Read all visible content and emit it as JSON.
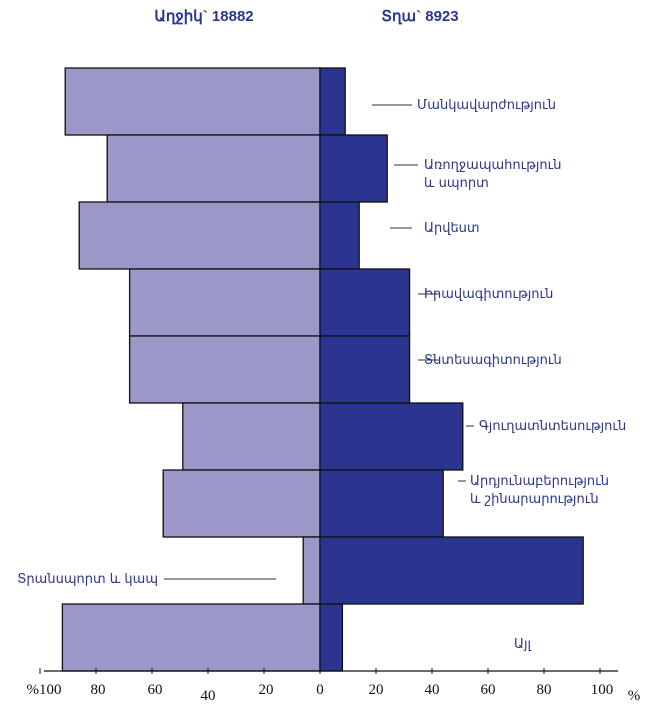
{
  "chart_data": {
    "type": "bar",
    "subtype": "diverging-horizontal",
    "title_left": "Աղջիկ` 18882",
    "title_right": "Տղա` 8923",
    "categories": [
      {
        "lines": [
          "Մանկավարժություն"
        ]
      },
      {
        "lines": [
          "Առողջապահություն",
          "և սպորտ"
        ]
      },
      {
        "lines": [
          "Արվեստ"
        ]
      },
      {
        "lines": [
          "Իրավագիտություն"
        ]
      },
      {
        "lines": [
          "Տնտեսագիտություն"
        ]
      },
      {
        "lines": [
          "Գյուղատնտեսություն"
        ]
      },
      {
        "lines": [
          "Արդյունաբերություն",
          "և շինարարություն"
        ]
      },
      {
        "lines": [
          "Տրանսպորտ  և կապ"
        ]
      },
      {
        "lines": [
          "Այլ"
        ]
      }
    ],
    "series": [
      {
        "name": "Աղջիկ",
        "color": "#9b98c9",
        "values": [
          91,
          76,
          86,
          68,
          68,
          49,
          56,
          6,
          92
        ]
      },
      {
        "name": "Տղա",
        "color": "#2b3590",
        "values": [
          9,
          24,
          14,
          32,
          32,
          51,
          44,
          94,
          8
        ]
      }
    ],
    "x_ticks_left": [
      "%100",
      "80",
      "60",
      "40",
      "20"
    ],
    "x_ticks_right": [
      "0",
      "20",
      "40",
      "60",
      "80",
      "100"
    ],
    "x_unit": "%",
    "xlim": [
      -100,
      100
    ]
  }
}
